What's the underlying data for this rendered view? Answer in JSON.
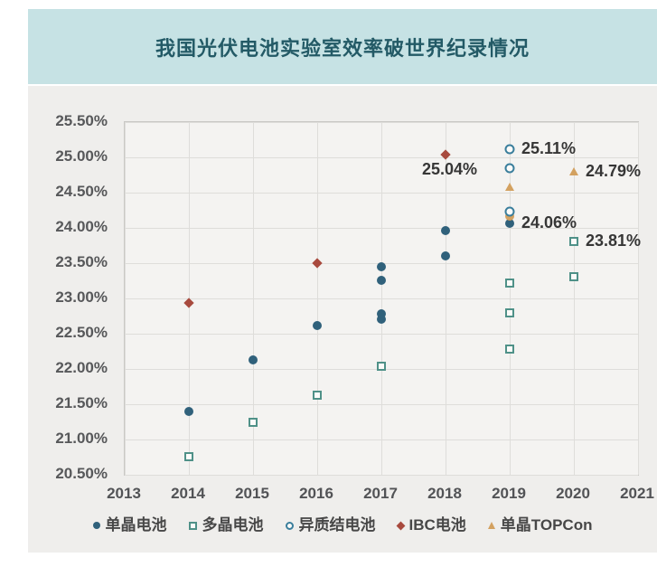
{
  "title_banner": {
    "text": "我国光伏电池实验室效率破世界纪录情况",
    "bg_color": "#c6e2e4",
    "text_color": "#235a66"
  },
  "chart_data": {
    "type": "scatter",
    "title": "我国光伏电池实验室效率破世界纪录情况",
    "xlabel": "",
    "ylabel": "",
    "xlim": [
      2013,
      2021
    ],
    "ylim": [
      20.5,
      25.5
    ],
    "x_ticks": [
      "2013",
      "2014",
      "2015",
      "2016",
      "2017",
      "2018",
      "2019",
      "2020",
      "2021"
    ],
    "y_ticks": [
      "25.50%",
      "25.00%",
      "24.50%",
      "24.00%",
      "23.50%",
      "23.00%",
      "22.50%",
      "22.00%",
      "21.50%",
      "21.00%",
      "20.50%"
    ],
    "grid": true,
    "legend_position": "bottom",
    "plot_bg": "#f4f3f1",
    "series": [
      {
        "key": "mono",
        "name": "单晶电池",
        "marker": "circle",
        "fill": "filled",
        "color": "#30617b",
        "points": [
          {
            "x": 2014,
            "y": 21.4
          },
          {
            "x": 2015,
            "y": 22.13
          },
          {
            "x": 2016,
            "y": 22.61
          },
          {
            "x": 2017,
            "y": 22.71
          },
          {
            "x": 2017,
            "y": 22.78
          },
          {
            "x": 2017,
            "y": 23.26
          },
          {
            "x": 2017,
            "y": 23.45
          },
          {
            "x": 2018,
            "y": 23.6
          },
          {
            "x": 2018,
            "y": 23.96
          },
          {
            "x": 2019,
            "y": 24.06
          }
        ],
        "labels": [
          {
            "x": 2019,
            "y": 24.06,
            "text": "24.06%",
            "dx": 13,
            "dy": -11
          }
        ]
      },
      {
        "key": "poly",
        "name": "多晶电池",
        "marker": "square",
        "fill": "open",
        "color": "#4f9188",
        "points": [
          {
            "x": 2014,
            "y": 20.76
          },
          {
            "x": 2015,
            "y": 21.25
          },
          {
            "x": 2016,
            "y": 21.63
          },
          {
            "x": 2017,
            "y": 22.04
          },
          {
            "x": 2019,
            "y": 22.28
          },
          {
            "x": 2019,
            "y": 22.8
          },
          {
            "x": 2019,
            "y": 23.22
          },
          {
            "x": 2020,
            "y": 23.31
          },
          {
            "x": 2020,
            "y": 23.81
          }
        ],
        "labels": [
          {
            "x": 2020,
            "y": 23.81,
            "text": "23.81%",
            "dx": 13,
            "dy": -11
          }
        ]
      },
      {
        "key": "hjt",
        "name": "异质结电池",
        "marker": "circle",
        "fill": "open",
        "color": "#3a7e9c",
        "points": [
          {
            "x": 2019,
            "y": 24.23
          },
          {
            "x": 2019,
            "y": 24.85
          },
          {
            "x": 2019,
            "y": 25.11
          }
        ],
        "labels": [
          {
            "x": 2019,
            "y": 25.11,
            "text": "25.11%",
            "dx": 13,
            "dy": -11
          }
        ]
      },
      {
        "key": "ibc",
        "name": "IBC电池",
        "marker": "diamond",
        "fill": "filled",
        "color": "#a84a3e",
        "points": [
          {
            "x": 2014,
            "y": 22.94
          },
          {
            "x": 2016,
            "y": 23.5
          },
          {
            "x": 2018,
            "y": 25.04
          }
        ],
        "labels": [
          {
            "x": 2018,
            "y": 25.04,
            "text": "25.04%",
            "dx": -26,
            "dy": 6
          }
        ]
      },
      {
        "key": "topcon",
        "name": "单晶TOPCon",
        "marker": "triangle",
        "fill": "filled",
        "color": "#d3a160",
        "points": [
          {
            "x": 2019,
            "y": 24.17,
            "marker": "circle",
            "fill": "filled"
          },
          {
            "x": 2019,
            "y": 24.58
          },
          {
            "x": 2020,
            "y": 24.79
          }
        ],
        "labels": [
          {
            "x": 2020,
            "y": 24.79,
            "text": "24.79%",
            "dx": 13,
            "dy": -11
          }
        ]
      }
    ]
  }
}
